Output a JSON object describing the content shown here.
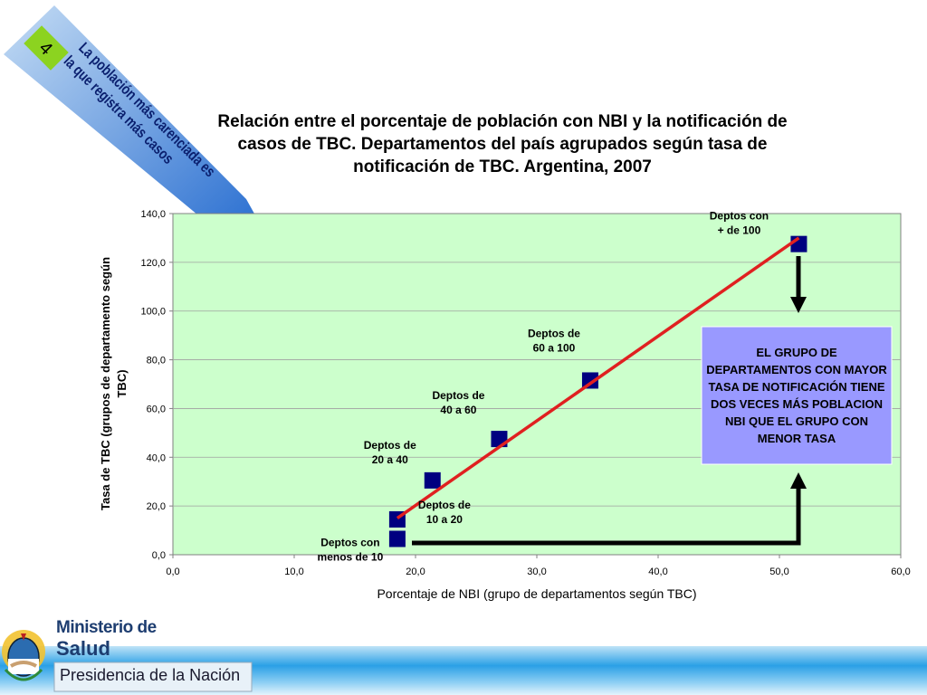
{
  "badge": {
    "number": "4"
  },
  "banner": {
    "line1": "La población más carenciada es",
    "line2": "la que registra más casos"
  },
  "title_lines": [
    "Relación entre el porcentaje de población con NBI y la notificación de",
    "casos de TBC. Departamentos del país agrupados según tasa de",
    "notificación de TBC. Argentina, 2007"
  ],
  "colors": {
    "plot_bg": "#ccffcc",
    "marker": "#000080",
    "trend_line": "#e02020",
    "callout_bg": "#9999ff",
    "banner_start": "#b8d4f0",
    "banner_end": "#1a6ad0",
    "badge_bg": "#8cd320"
  },
  "chart_data": {
    "type": "scatter",
    "title": "Relación entre el porcentaje de población con NBI y la notificación de casos de TBC. Departamentos del país agrupados según tasa de notificación de TBC. Argentina, 2007",
    "xlabel": "Porcentaje de NBI (grupo de departamentos según TBC)",
    "ylabel": "Tasa de TBC (grupos de departamento según TBC)",
    "xlim": [
      0,
      60
    ],
    "ylim": [
      0,
      140
    ],
    "x_ticks": [
      "0,0",
      "10,0",
      "20,0",
      "30,0",
      "40,0",
      "50,0",
      "60,0"
    ],
    "y_ticks": [
      "0,0",
      "20,0",
      "40,0",
      "60,0",
      "80,0",
      "100,0",
      "120,0",
      "140,0"
    ],
    "grid": "horizontal",
    "points": [
      {
        "x": 18.5,
        "y": 6.5,
        "label": [
          "Deptos con",
          "menos de 10"
        ]
      },
      {
        "x": 18.5,
        "y": 14.5,
        "label": [
          "Deptos de",
          "10 a 20"
        ]
      },
      {
        "x": 21.4,
        "y": 30.5,
        "label": [
          "Deptos de",
          "20 a 40"
        ]
      },
      {
        "x": 26.9,
        "y": 47.5,
        "label": [
          "Deptos de",
          "40 a 60"
        ]
      },
      {
        "x": 34.4,
        "y": 71.5,
        "label": [
          "Deptos de",
          "60 a 100"
        ]
      },
      {
        "x": 51.6,
        "y": 127.5,
        "label": [
          "Deptos con",
          "+ de 100"
        ]
      }
    ],
    "trend_line": {
      "from": [
        18.5,
        15.0
      ],
      "to": [
        51.6,
        130.0
      ]
    }
  },
  "callout": {
    "text": "EL GRUPO DE DEPARTAMENTOS CON MAYOR TASA DE NOTIFICACIÓN TIENE DOS VECES MÁS POBLACION NBI QUE EL GRUPO CON MENOR TASA"
  },
  "footer": {
    "ministry_line1": "Ministerio de",
    "ministry_line2": "Salud",
    "presidency": "Presidencia de la Nación"
  }
}
